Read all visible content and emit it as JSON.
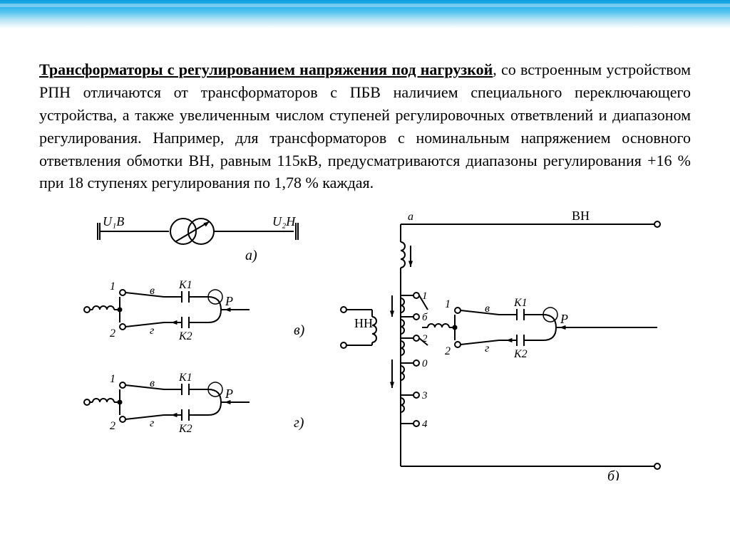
{
  "text": {
    "title_fragment": "Трансформаторы с регулированием напряжения под нагрузкой",
    "body_rest": ", со встроенным устройством РПН отличаются от трансформаторов с ПБВ наличием специального переключающего устройства, а также увеличенным числом ступеней регулировочных ответвлений и диапазоном регулирования. Например, для трансформаторов с номинальным напряжением основного ответвления обмотки ВН, равным 115кВ, предусматриваются диапазоны регулирования +16 % при 18 ступенях регулирования по 1,78 % каждая."
  },
  "diagram": {
    "type": "schematic",
    "stroke": "#000000",
    "stroke_width": 2,
    "font_family": "Times New Roman, serif",
    "font_italic": true,
    "labels": {
      "U1B": "U₁В",
      "U2H": "U₂Н",
      "a": "а)",
      "b": "б)",
      "v": "в)",
      "g": "г)",
      "BH": "ВН",
      "HH": "НН",
      "K1": "К1",
      "K2": "К2",
      "R": "Р",
      "alpha": "а",
      "vlet": "в",
      "glet": "г",
      "blet": "б",
      "n1": "1",
      "n2": "2",
      "n3": "3",
      "n4": "4",
      "n0": "0"
    }
  }
}
